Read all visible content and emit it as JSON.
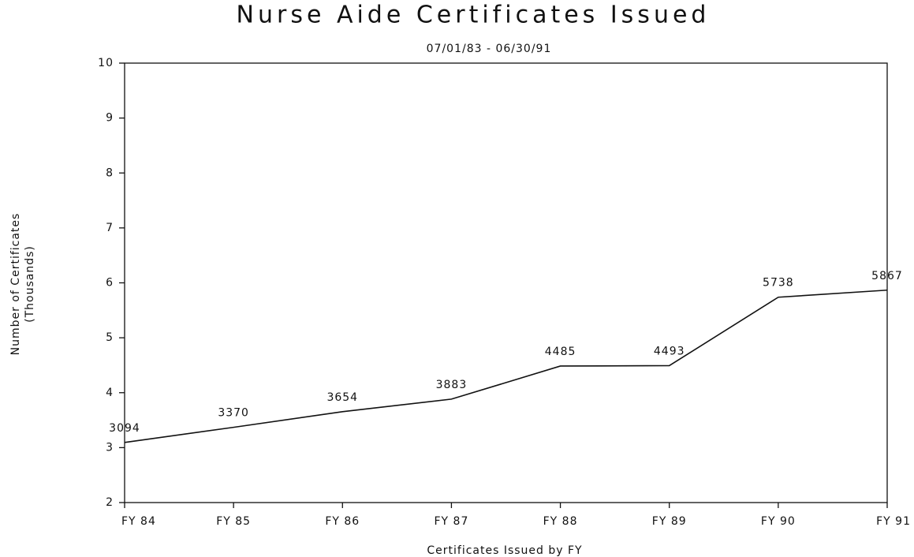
{
  "chart_data": {
    "type": "line",
    "title": "Nurse Aide Certificates Issued",
    "subtitle": "07/01/83 - 06/30/91",
    "y_label": [
      "Number of Certificates",
      "(Thousands)"
    ],
    "x_label": "Certificates Issued by FY",
    "categories": [
      "FY 84",
      "FY 85",
      "FY 86",
      "FY 87",
      "FY 88",
      "FY 89",
      "FY 90",
      "FY 91"
    ],
    "series": [
      {
        "name": "Certificates",
        "color": "#111111",
        "values": [
          3.094,
          3.37,
          3.654,
          3.883,
          4.485,
          4.493,
          5.738,
          5.867
        ],
        "value_labels": [
          "3094",
          "3370",
          "3654",
          "3883",
          "4485",
          "4493",
          "5738",
          "5867"
        ]
      }
    ],
    "ylim": [
      2,
      10
    ],
    "yticks": [
      2,
      3,
      4,
      5,
      6,
      7,
      8,
      9,
      10
    ],
    "grid": false
  }
}
